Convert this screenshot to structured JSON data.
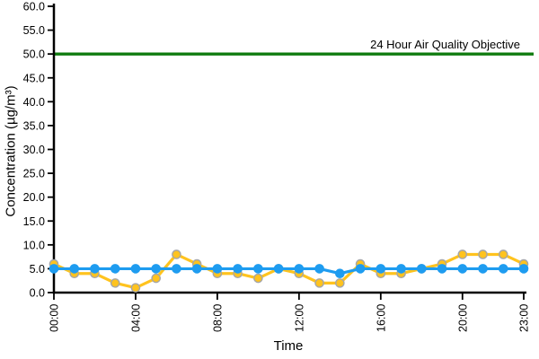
{
  "chart_data": {
    "type": "line",
    "xlabel": "Time",
    "ylabel": "Concentration (µg/m³)",
    "ylim": [
      0,
      60
    ],
    "ytick_step": 5,
    "ytick_decimals": 1,
    "grid": false,
    "legend": "none",
    "x": [
      "00:00",
      "01:00",
      "02:00",
      "03:00",
      "04:00",
      "05:00",
      "06:00",
      "07:00",
      "08:00",
      "09:00",
      "10:00",
      "11:00",
      "12:00",
      "13:00",
      "14:00",
      "15:00",
      "16:00",
      "17:00",
      "18:00",
      "19:00",
      "20:00",
      "21:00",
      "22:00",
      "23:00"
    ],
    "x_tick_labels": [
      "00:00",
      "04:00",
      "08:00",
      "12:00",
      "16:00",
      "20:00",
      "23:00"
    ],
    "series": [
      {
        "name": "hourly-concentration-yellow",
        "color": "#FFC31E",
        "marker": "circle",
        "marker_outline": "#A6A6A6",
        "values": [
          6,
          4,
          4,
          2,
          1,
          3,
          8,
          6,
          4,
          4,
          3,
          5,
          4,
          2,
          2,
          6,
          4,
          4,
          5,
          6,
          8,
          8,
          8,
          6
        ]
      },
      {
        "name": "baseline-blue",
        "color": "#1E9CF0",
        "marker": "circle",
        "marker_outline": "#1E9CF0",
        "values": [
          5,
          5,
          5,
          5,
          5,
          5,
          5,
          5,
          5,
          5,
          5,
          5,
          5,
          5,
          4,
          5,
          5,
          5,
          5,
          5,
          5,
          5,
          5,
          5
        ]
      }
    ],
    "reference_line": {
      "value": 50,
      "color": "#107C10",
      "label": "24 Hour Air Quality Objective"
    }
  },
  "colors": {
    "axis": "#000000",
    "background": "#FFFFFF",
    "text": "#000000"
  }
}
